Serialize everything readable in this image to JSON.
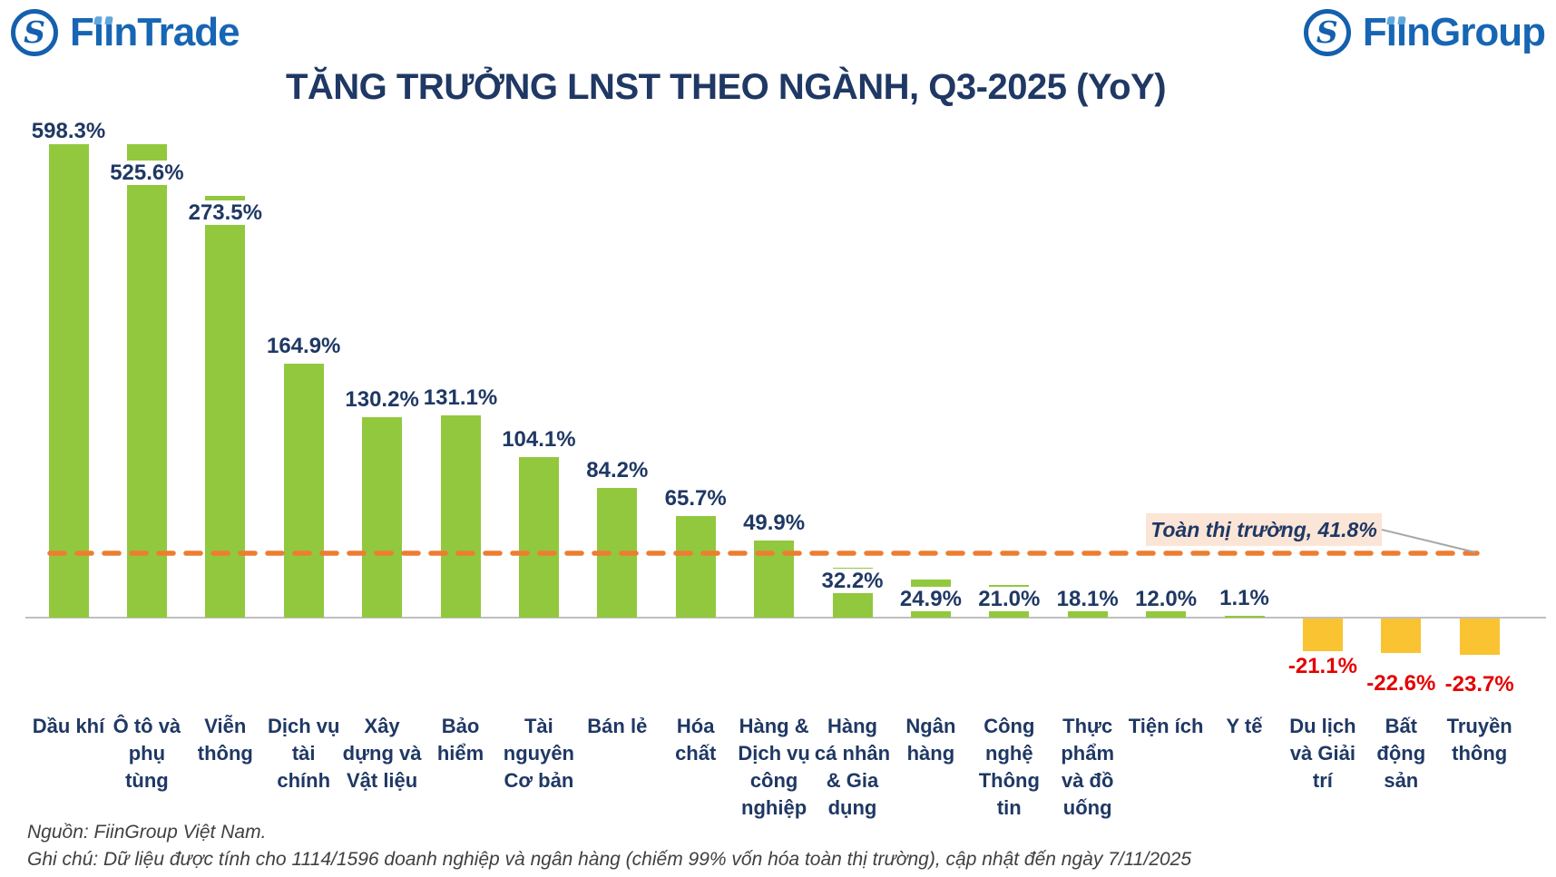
{
  "header": {
    "left_logo": {
      "text": "FiinTrade",
      "monogram": "S"
    },
    "right_logo": {
      "text": "FiinGroup",
      "monogram": "S"
    }
  },
  "chart_data": {
    "type": "bar",
    "title": "TĂNG TRƯỞNG LNST THEO NGÀNH, Q3-2025 (YoY)",
    "unit": "%",
    "categories": [
      "Dầu khí",
      "Ô tô và\nphụ\ntùng",
      "Viễn\nthông",
      "Dịch vụ\ntài\nchính",
      "Xây\ndựng và\nVật liệu",
      "Bảo\nhiểm",
      "Tài\nnguyên\nCơ bản",
      "Bán lẻ",
      "Hóa\nchất",
      "Hàng &\nDịch vụ\ncông\nnghiệp",
      "Hàng\ncá nhân\n& Gia\ndụng",
      "Ngân\nhàng",
      "Công\nnghệ\nThông\ntin",
      "Thực\nphẩm\nvà đồ\nuống",
      "Tiện ích",
      "Y tế",
      "Du lịch\nvà Giải\ntrí",
      "Bất\nđộng\nsản",
      "Truyền\nthông"
    ],
    "values": [
      598.3,
      525.6,
      273.5,
      164.9,
      130.2,
      131.1,
      104.1,
      84.2,
      65.7,
      49.9,
      32.2,
      24.9,
      21.0,
      18.1,
      12.0,
      1.1,
      -21.1,
      -22.6,
      -23.7
    ],
    "value_labels": [
      "598.3%",
      "525.6%",
      "273.5%",
      "164.9%",
      "130.2%",
      "131.1%",
      "104.1%",
      "84.2%",
      "65.7%",
      "49.9%",
      "32.2%",
      "24.9%",
      "21.0%",
      "18.1%",
      "12.0%",
      "1.1%",
      "-21.1%",
      "-22.6%",
      "-23.7%"
    ],
    "benchmark": {
      "label": "Toàn thị trường, 41.8%",
      "value": 41.8
    },
    "ylim": [
      -40,
      307
    ],
    "grid": "off",
    "note_on_scale": "bars for 598.3% and 525.6% are visually clipped at the top of the plot area",
    "colors": {
      "positive_bar": "#92c83e",
      "negative_bar": "#f9c331",
      "benchmark_line": "#ed7d31",
      "benchmark_box_bg": "#fbe5d6",
      "value_label": "#1f3864",
      "negative_value_label": "#e40000",
      "axis_line": "#bfbfbf",
      "title_text": "#1f3864",
      "brand_blue": "#1766b4"
    }
  },
  "footer": {
    "source": "Nguồn: FiinGroup Việt Nam.",
    "note": "Ghi chú: Dữ liệu được tính cho 1114/1596 doanh nghiệp và ngân hàng (chiếm 99% vốn hóa toàn thị trường), cập nhật đến ngày 7/11/2025"
  }
}
